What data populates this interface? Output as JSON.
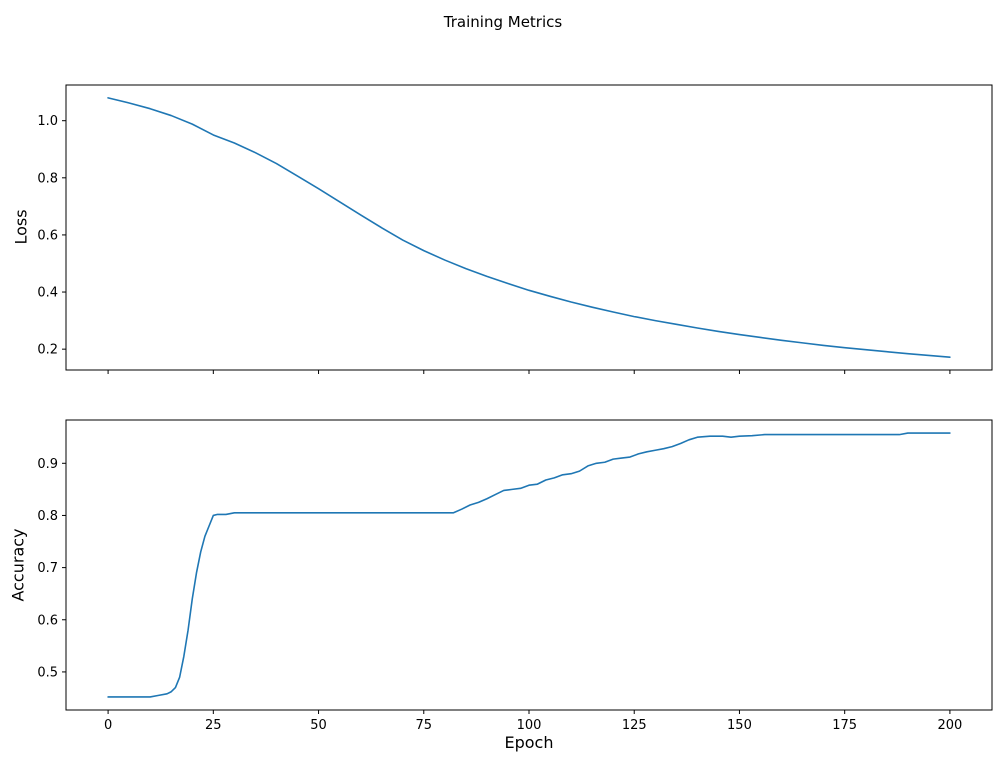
{
  "figure": {
    "title": "Training Metrics",
    "xlabel": "Epoch",
    "line_color": "#1f77b4",
    "axis_color": "#000000",
    "background": "#ffffff"
  },
  "chart_data": [
    {
      "type": "line",
      "name": "loss",
      "title": "",
      "ylabel": "Loss",
      "xlabel": "",
      "legend": "none",
      "grid": false,
      "xlim": [
        -10,
        210
      ],
      "ylim": [
        0.127,
        1.125
      ],
      "xticks": [
        0,
        25,
        50,
        75,
        100,
        125,
        150,
        175,
        200
      ],
      "xtick_labels": [
        "0",
        "25",
        "50",
        "75",
        "100",
        "125",
        "150",
        "175",
        "200"
      ],
      "show_xtick_labels": false,
      "yticks": [
        0.2,
        0.4,
        0.6,
        0.8,
        1.0
      ],
      "ytick_labels": [
        "0.2",
        "0.4",
        "0.6",
        "0.8",
        "1.0"
      ],
      "x": [
        0,
        5,
        10,
        15,
        20,
        25,
        30,
        35,
        40,
        45,
        50,
        55,
        60,
        65,
        70,
        75,
        80,
        85,
        90,
        95,
        100,
        105,
        110,
        115,
        120,
        125,
        130,
        135,
        140,
        145,
        150,
        155,
        160,
        165,
        170,
        175,
        180,
        185,
        190,
        195,
        200
      ],
      "y": [
        1.08,
        1.062,
        1.042,
        1.018,
        0.988,
        0.95,
        0.922,
        0.888,
        0.85,
        0.806,
        0.762,
        0.716,
        0.67,
        0.625,
        0.582,
        0.545,
        0.512,
        0.482,
        0.455,
        0.43,
        0.406,
        0.385,
        0.365,
        0.347,
        0.33,
        0.314,
        0.3,
        0.287,
        0.274,
        0.262,
        0.251,
        0.241,
        0.231,
        0.222,
        0.213,
        0.205,
        0.198,
        0.191,
        0.184,
        0.178,
        0.172
      ]
    },
    {
      "type": "line",
      "name": "accuracy",
      "title": "",
      "ylabel": "Accuracy",
      "xlabel": "Epoch",
      "legend": "none",
      "grid": false,
      "xlim": [
        -10,
        210
      ],
      "ylim": [
        0.427,
        0.983
      ],
      "xticks": [
        0,
        25,
        50,
        75,
        100,
        125,
        150,
        175,
        200
      ],
      "xtick_labels": [
        "0",
        "25",
        "50",
        "75",
        "100",
        "125",
        "150",
        "175",
        "200"
      ],
      "show_xtick_labels": true,
      "yticks": [
        0.5,
        0.6,
        0.7,
        0.8,
        0.9
      ],
      "ytick_labels": [
        "0.5",
        "0.6",
        "0.7",
        "0.8",
        "0.9"
      ],
      "x": [
        0,
        2,
        4,
        6,
        8,
        10,
        12,
        14,
        15,
        16,
        17,
        18,
        19,
        20,
        21,
        22,
        23,
        24,
        25,
        26,
        28,
        30,
        35,
        40,
        50,
        60,
        70,
        80,
        82,
        84,
        86,
        88,
        90,
        92,
        94,
        96,
        98,
        100,
        102,
        104,
        106,
        108,
        110,
        112,
        114,
        116,
        118,
        120,
        122,
        124,
        126,
        128,
        130,
        132,
        134,
        136,
        138,
        140,
        143,
        146,
        148,
        150,
        153,
        156,
        160,
        165,
        170,
        175,
        180,
        185,
        188,
        190,
        195,
        200
      ],
      "y": [
        0.452,
        0.452,
        0.452,
        0.452,
        0.452,
        0.452,
        0.455,
        0.458,
        0.462,
        0.47,
        0.49,
        0.53,
        0.58,
        0.64,
        0.69,
        0.73,
        0.76,
        0.78,
        0.8,
        0.802,
        0.802,
        0.805,
        0.805,
        0.805,
        0.805,
        0.805,
        0.805,
        0.805,
        0.805,
        0.812,
        0.82,
        0.825,
        0.832,
        0.84,
        0.848,
        0.85,
        0.852,
        0.858,
        0.86,
        0.868,
        0.872,
        0.878,
        0.88,
        0.885,
        0.895,
        0.9,
        0.902,
        0.908,
        0.91,
        0.912,
        0.918,
        0.922,
        0.925,
        0.928,
        0.932,
        0.938,
        0.945,
        0.95,
        0.952,
        0.952,
        0.95,
        0.952,
        0.953,
        0.955,
        0.955,
        0.955,
        0.955,
        0.955,
        0.955,
        0.955,
        0.955,
        0.958,
        0.958,
        0.958
      ]
    }
  ]
}
